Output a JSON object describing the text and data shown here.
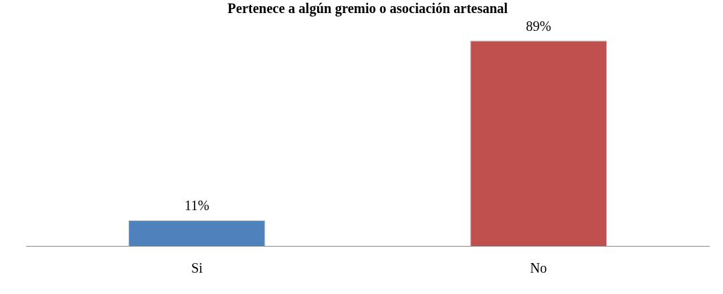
{
  "chart_data": {
    "type": "bar",
    "title": "Pertenece a algún gremio o asociación artesanal",
    "categories": [
      "Si",
      "No"
    ],
    "values": [
      11,
      89
    ],
    "colors": [
      "#4f81bd",
      "#c0504d"
    ],
    "data_labels": true,
    "value_labels": [
      "11%",
      "89%"
    ],
    "tick_labels": "x",
    "grid": false,
    "legend": false
  }
}
